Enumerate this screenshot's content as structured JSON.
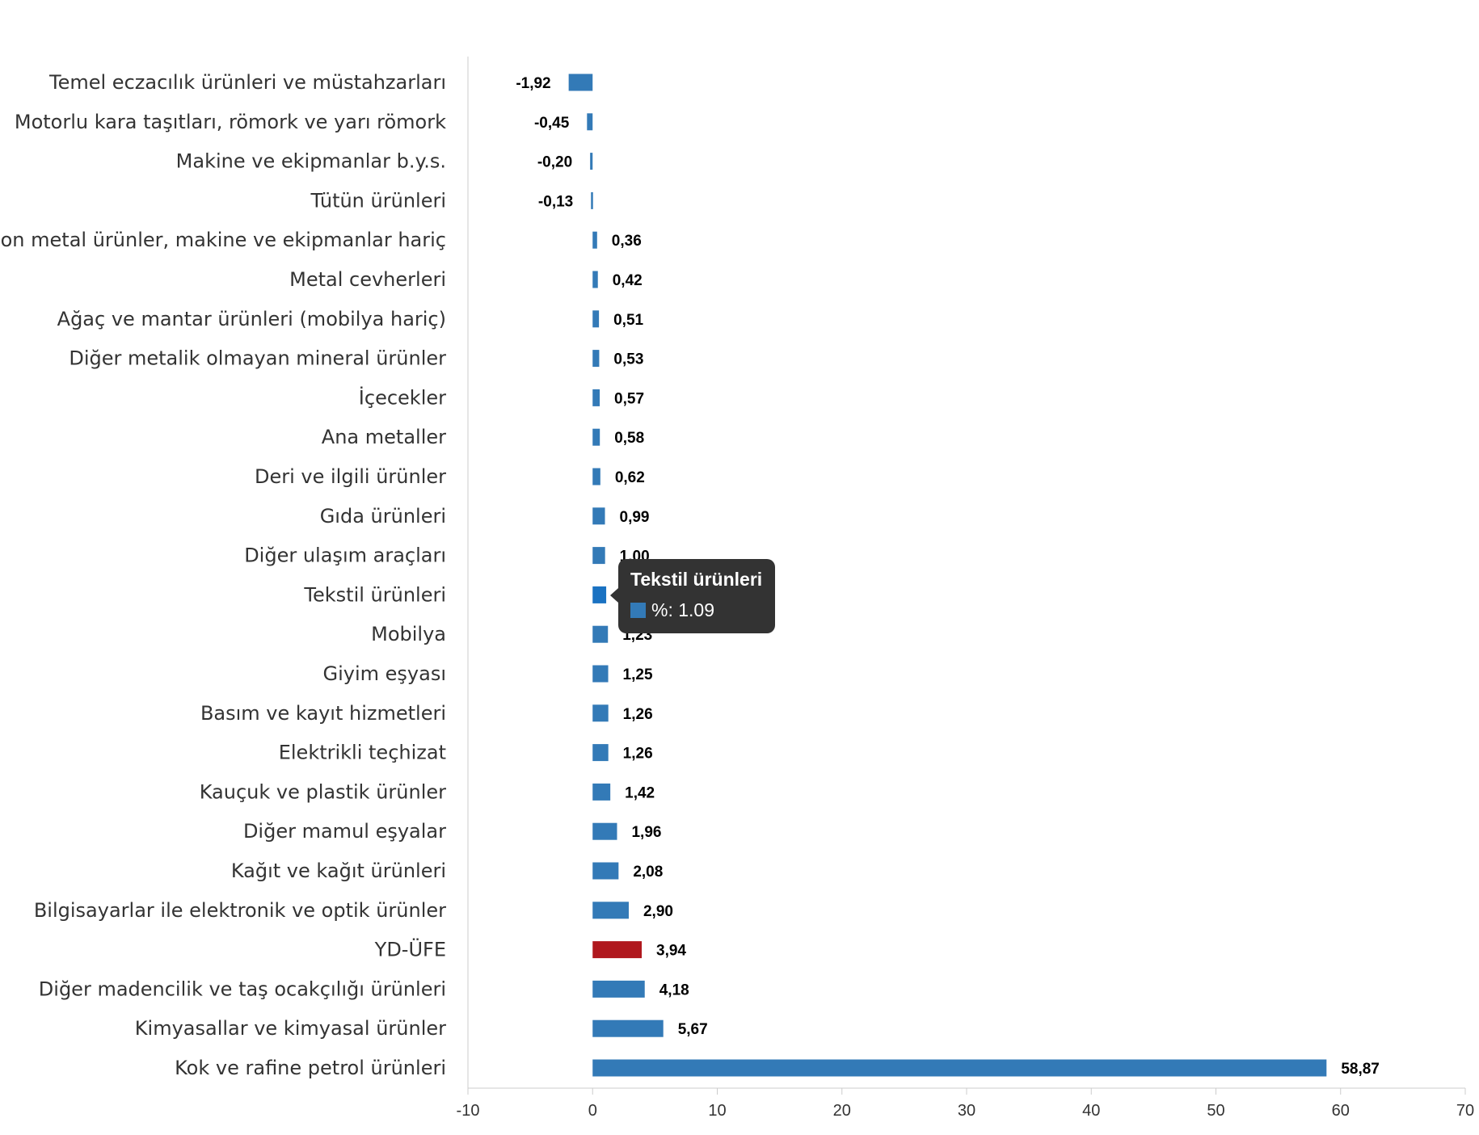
{
  "chart_data": {
    "type": "bar",
    "orientation": "horizontal",
    "categories": [
      "Temel eczacılık ürünleri ve müstahzarları",
      "Motorlu kara taşıtları, römork ve yarı römork",
      "Makine ve ekipmanlar b.y.s.",
      "Tütün ürünleri",
      "Fabrikasyon metal ürünler, makine ve ekipmanlar hariç",
      "Metal cevherleri",
      "Ağaç ve mantar ürünleri (mobilya hariç)",
      "Diğer metalik olmayan mineral ürünler",
      "İçecekler",
      "Ana metaller",
      "Deri ve ilgili ürünler",
      "Gıda ürünleri",
      "Diğer ulaşım araçları",
      "Tekstil ürünleri",
      "Mobilya",
      "Giyim eşyası",
      "Basım ve kayıt hizmetleri",
      "Elektrikli teçhizat",
      "Kauçuk ve plastik ürünler",
      "Diğer mamul eşyalar",
      "Kağıt ve kağıt ürünleri",
      "Bilgisayarlar ile elektronik ve optik ürünler",
      "YD-ÜFE",
      "Diğer madencilik ve taş ocakçılığı ürünleri",
      "Kimyasallar ve kimyasal ürünler",
      "Kok ve rafine petrol ürünleri"
    ],
    "values": [
      -1.92,
      -0.45,
      -0.2,
      -0.13,
      0.36,
      0.42,
      0.51,
      0.53,
      0.57,
      0.58,
      0.62,
      0.99,
      1.0,
      1.09,
      1.23,
      1.25,
      1.26,
      1.26,
      1.42,
      1.96,
      2.08,
      2.9,
      3.94,
      4.18,
      5.67,
      58.87
    ],
    "value_labels": [
      "-1,92",
      "-0,45",
      "-0,20",
      "-0,13",
      "0,36",
      "0,42",
      "0,51",
      "0,53",
      "0,57",
      "0,58",
      "0,62",
      "0,99",
      "1,00",
      "1,09",
      "1,23",
      "1,25",
      "1,26",
      "1,26",
      "1,42",
      "1,96",
      "2,08",
      "2,90",
      "3,94",
      "4,18",
      "5,67",
      "58,87"
    ],
    "xlim": [
      -10,
      70
    ],
    "xticks": [
      -10,
      0,
      10,
      20,
      30,
      40,
      50,
      60,
      70
    ],
    "bar_color": "#337ab7",
    "highlight_color": "#b0181e",
    "highlight_category": "YD-ÜFE",
    "hover_color": "#1a72c2",
    "hover_category": "Tekstil ürünleri",
    "grid": false,
    "legend": "none"
  },
  "tooltip": {
    "title": "Tekstil ürünleri",
    "value_text": "%: 1.09",
    "swatch_color": "#337ab7"
  }
}
